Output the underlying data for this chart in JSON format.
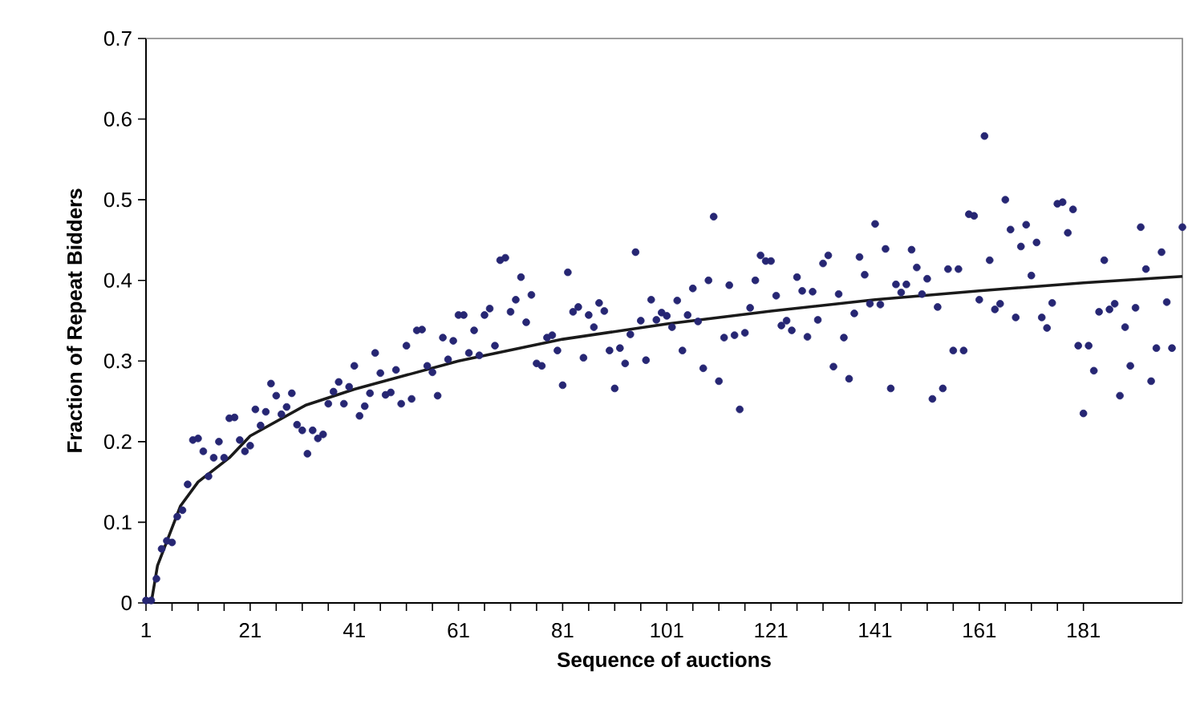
{
  "chart_data": {
    "type": "scatter",
    "xlabel": "Sequence of auctions",
    "ylabel": "Fraction of Repeat Bidders",
    "xlim": [
      1,
      200
    ],
    "ylim": [
      0,
      0.7
    ],
    "xticks": [
      1,
      21,
      41,
      61,
      81,
      101,
      121,
      141,
      161,
      181
    ],
    "yticks": [
      0,
      0.1,
      0.2,
      0.3,
      0.4,
      0.5,
      0.6,
      0.7
    ],
    "grid": false,
    "series": [
      {
        "color": "#262673",
        "x": [
          1,
          2,
          3,
          4,
          5,
          6,
          7,
          8,
          9,
          10,
          11,
          12,
          13,
          14,
          15,
          16,
          17,
          18,
          19,
          20,
          21,
          22,
          23,
          24,
          25,
          26,
          27,
          28,
          29,
          30,
          31,
          32,
          33,
          34,
          35,
          36,
          37,
          38,
          39,
          40,
          41,
          42,
          43,
          44,
          45,
          46,
          47,
          48,
          49,
          50,
          51,
          52,
          53,
          54,
          55,
          56,
          57,
          58,
          59,
          60,
          61,
          62,
          63,
          64,
          65,
          66,
          67,
          68,
          69,
          70,
          71,
          72,
          73,
          74,
          75,
          76,
          77,
          78,
          79,
          80,
          81,
          82,
          83,
          84,
          85,
          86,
          87,
          88,
          89,
          90,
          91,
          92,
          93,
          94,
          95,
          96,
          97,
          98,
          99,
          100,
          101,
          102,
          103,
          104,
          105,
          106,
          107,
          108,
          109,
          110,
          111,
          112,
          113,
          114,
          115,
          116,
          117,
          118,
          119,
          120,
          121,
          122,
          123,
          124,
          125,
          126,
          127,
          128,
          129,
          130,
          131,
          132,
          133,
          134,
          135,
          136,
          137,
          138,
          139,
          140,
          141,
          142,
          143,
          144,
          145,
          146,
          147,
          148,
          149,
          150,
          151,
          152,
          153,
          154,
          155,
          156,
          157,
          158,
          159,
          160,
          161,
          162,
          163,
          164,
          165,
          166,
          167,
          168,
          169,
          170,
          171,
          172,
          173,
          174,
          175,
          176,
          177,
          178,
          179,
          180,
          181,
          182,
          183,
          184,
          185,
          186,
          187,
          188,
          189,
          190,
          191,
          192,
          193,
          194,
          195,
          196,
          197,
          198,
          200
        ],
        "values": [
          0.003,
          0.003,
          0.03,
          0.067,
          0.077,
          0.075,
          0.107,
          0.115,
          0.147,
          0.202,
          0.204,
          0.188,
          0.157,
          0.18,
          0.2,
          0.18,
          0.229,
          0.23,
          0.202,
          0.188,
          0.195,
          0.24,
          0.22,
          0.237,
          0.272,
          0.257,
          0.234,
          0.243,
          0.26,
          0.221,
          0.214,
          0.185,
          0.214,
          0.204,
          0.209,
          0.247,
          0.262,
          0.274,
          0.247,
          0.268,
          0.294,
          0.232,
          0.244,
          0.26,
          0.31,
          0.285,
          0.258,
          0.261,
          0.289,
          0.247,
          0.319,
          0.253,
          0.338,
          0.339,
          0.294,
          0.286,
          0.257,
          0.329,
          0.302,
          0.325,
          0.357,
          0.357,
          0.31,
          0.338,
          0.307,
          0.357,
          0.365,
          0.319,
          0.425,
          0.428,
          0.361,
          0.376,
          0.404,
          0.348,
          0.382,
          0.297,
          0.294,
          0.329,
          0.332,
          0.313,
          0.27,
          0.41,
          0.361,
          0.367,
          0.304,
          0.357,
          0.342,
          0.372,
          0.362,
          0.313,
          0.266,
          0.316,
          0.297,
          0.333,
          0.435,
          0.35,
          0.301,
          0.376,
          0.351,
          0.36,
          0.356,
          0.342,
          0.375,
          0.313,
          0.357,
          0.39,
          0.349,
          0.291,
          0.4,
          0.479,
          0.275,
          0.329,
          0.394,
          0.332,
          0.24,
          0.335,
          0.366,
          0.4,
          0.431,
          0.424,
          0.424,
          0.381,
          0.344,
          0.35,
          0.338,
          0.404,
          0.387,
          0.33,
          0.386,
          0.351,
          0.421,
          0.431,
          0.293,
          0.383,
          0.329,
          0.278,
          0.359,
          0.429,
          0.407,
          0.371,
          0.47,
          0.37,
          0.439,
          0.266,
          0.395,
          0.385,
          0.395,
          0.438,
          0.416,
          0.383,
          0.402,
          0.253,
          0.367,
          0.266,
          0.414,
          0.313,
          0.414,
          0.313,
          0.482,
          0.48,
          0.376,
          0.579,
          0.425,
          0.364,
          0.371,
          0.5,
          0.463,
          0.354,
          0.442,
          0.469,
          0.406,
          0.447,
          0.354,
          0.341,
          0.372,
          0.495,
          0.497,
          0.459,
          0.488,
          0.319,
          0.235,
          0.319,
          0.288,
          0.361,
          0.425,
          0.364,
          0.371,
          0.257,
          0.342,
          0.294,
          0.366,
          0.466,
          0.414,
          0.275,
          0.316,
          0.435,
          0.373,
          0.316,
          0.466
        ]
      },
      {
        "type": "line",
        "line_style": "solid",
        "color": "#1a1a1a",
        "x": [
          2,
          3.2,
          7.6,
          11,
          17,
          21,
          31.6,
          41,
          61,
          81,
          101,
          121,
          141,
          161,
          181,
          200
        ],
        "values": [
          0,
          0.046,
          0.12,
          0.15,
          0.18,
          0.207,
          0.245,
          0.265,
          0.3,
          0.327,
          0.346,
          0.362,
          0.376,
          0.387,
          0.397,
          0.405
        ]
      }
    ]
  }
}
